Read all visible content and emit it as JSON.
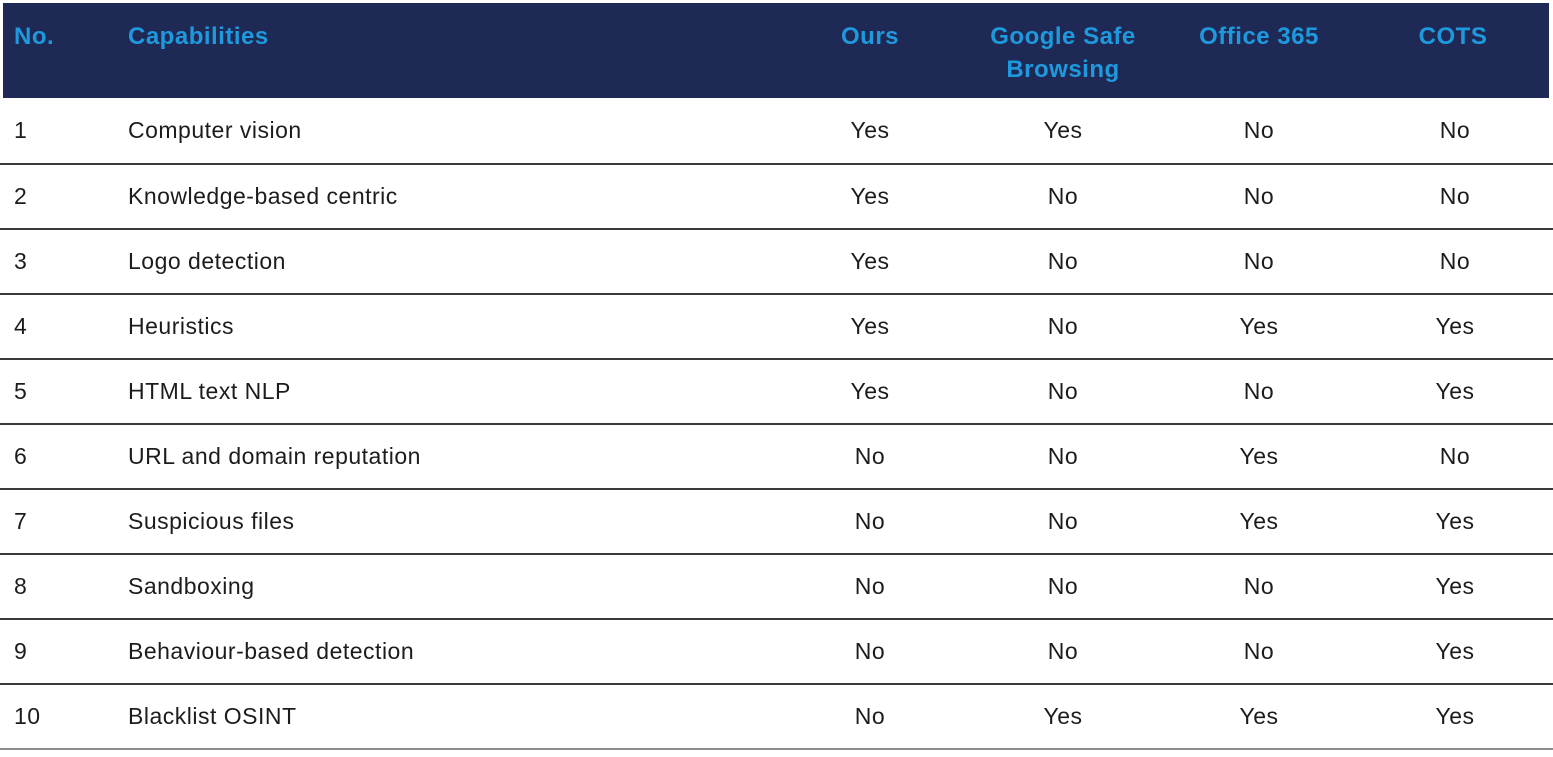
{
  "chart_data": {
    "type": "table",
    "title": "",
    "columns": [
      {
        "id": "no",
        "label": "No."
      },
      {
        "id": "capability",
        "label": "Capabilities"
      },
      {
        "id": "ours",
        "label": "Ours"
      },
      {
        "id": "google_safe_browsing",
        "label": "Google Safe Browsing"
      },
      {
        "id": "office_365",
        "label": "Office 365"
      },
      {
        "id": "cots",
        "label": "COTS"
      }
    ],
    "rows": [
      {
        "no": "1",
        "capability": "Computer vision",
        "ours": "Yes",
        "google_safe_browsing": "Yes",
        "office_365": "No",
        "cots": "No"
      },
      {
        "no": "2",
        "capability": "Knowledge-based centric",
        "ours": "Yes",
        "google_safe_browsing": "No",
        "office_365": "No",
        "cots": "No"
      },
      {
        "no": "3",
        "capability": "Logo detection",
        "ours": "Yes",
        "google_safe_browsing": "No",
        "office_365": "No",
        "cots": "No"
      },
      {
        "no": "4",
        "capability": "Heuristics",
        "ours": "Yes",
        "google_safe_browsing": "No",
        "office_365": "Yes",
        "cots": "Yes"
      },
      {
        "no": "5",
        "capability": "HTML text NLP",
        "ours": "Yes",
        "google_safe_browsing": "No",
        "office_365": "No",
        "cots": "Yes"
      },
      {
        "no": "6",
        "capability": "URL and domain reputation",
        "ours": "No",
        "google_safe_browsing": "No",
        "office_365": "Yes",
        "cots": "No"
      },
      {
        "no": "7",
        "capability": "Suspicious files",
        "ours": "No",
        "google_safe_browsing": "No",
        "office_365": "Yes",
        "cots": "Yes"
      },
      {
        "no": "8",
        "capability": "Sandboxing",
        "ours": "No",
        "google_safe_browsing": "No",
        "office_365": "No",
        "cots": "Yes"
      },
      {
        "no": "9",
        "capability": "Behaviour-based detection",
        "ours": "No",
        "google_safe_browsing": "No",
        "office_365": "No",
        "cots": "Yes"
      },
      {
        "no": "10",
        "capability": "Blacklist OSINT",
        "ours": "No",
        "google_safe_browsing": "Yes",
        "office_365": "Yes",
        "cots": "Yes"
      }
    ]
  },
  "colors": {
    "header_bg": "#1e2a55",
    "header_text": "#1f99dd",
    "body_text": "#1c1c1c",
    "row_line": "#3a3a3c",
    "bottom_line": "#8c8c8c"
  }
}
